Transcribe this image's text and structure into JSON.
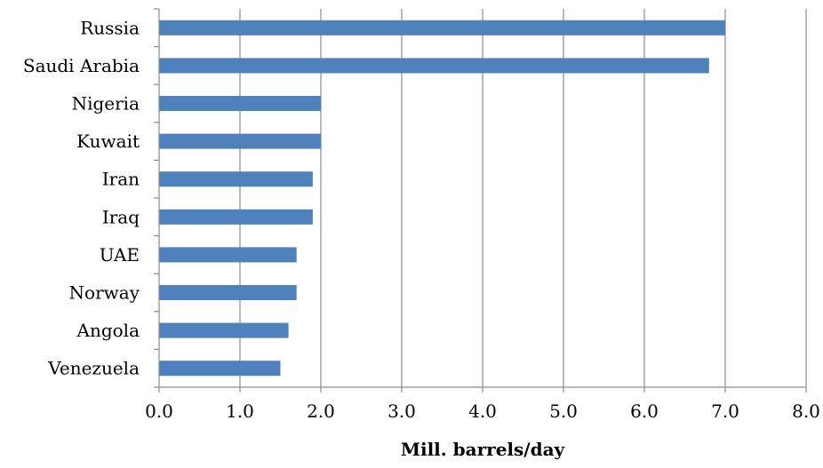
{
  "chart_data": {
    "type": "bar",
    "orientation": "horizontal",
    "categories": [
      "Russia",
      "Saudi Arabia",
      "Nigeria",
      "Kuwait",
      "Iran",
      "Iraq",
      "UAE",
      "Norway",
      "Angola",
      "Venezuela"
    ],
    "values": [
      7.0,
      6.8,
      2.0,
      2.0,
      1.9,
      1.9,
      1.7,
      1.7,
      1.6,
      1.5
    ],
    "xlabel": "Mill. barrels/day",
    "ylabel": "",
    "xlim": [
      0,
      8
    ],
    "xticks": [
      "0.0",
      "1.0",
      "2.0",
      "3.0",
      "4.0",
      "5.0",
      "6.0",
      "7.0",
      "8.0"
    ],
    "grid": "vertical",
    "legend": "none",
    "bar_color": "#4f81bd"
  }
}
